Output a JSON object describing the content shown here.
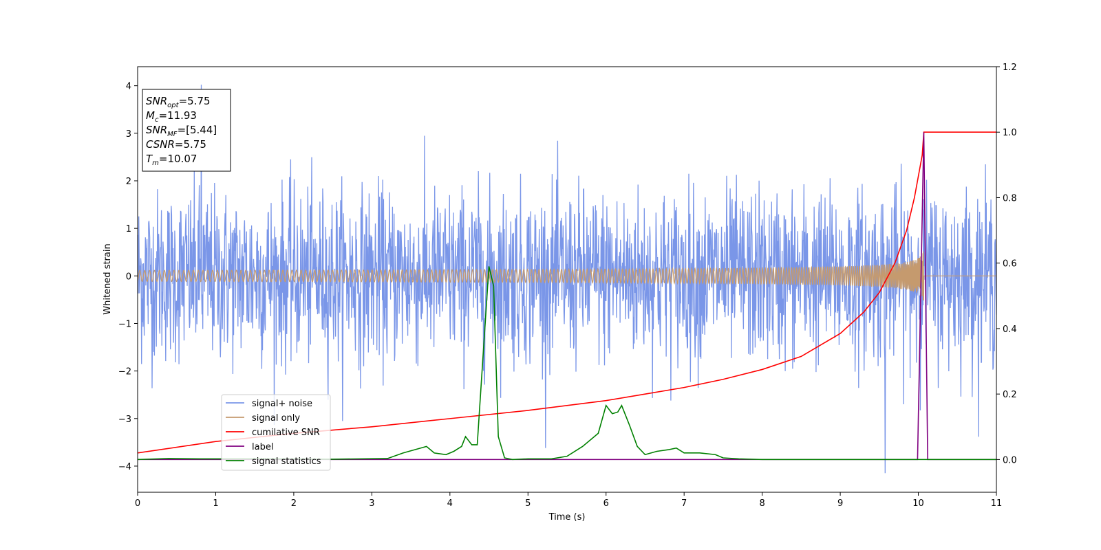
{
  "chart_data": {
    "type": "line",
    "xlabel": "Time (s)",
    "ylabel": "Whitened strain",
    "xlim": [
      0,
      11
    ],
    "ylim": [
      -4.55,
      4.4
    ],
    "y2lim": [
      -0.1,
      1.2
    ],
    "x_ticks": [
      0,
      1,
      2,
      3,
      4,
      5,
      6,
      7,
      8,
      9,
      10,
      11
    ],
    "y_ticks": [
      -4,
      -3,
      -2,
      -1,
      0,
      1,
      2,
      3,
      4
    ],
    "y2_ticks": [
      "0.0",
      "0.2",
      "0.4",
      "0.6",
      "0.8",
      "1.0",
      "1.2"
    ],
    "grid": false,
    "legend_placement": "lower-left",
    "annotation": {
      "lines": [
        {
          "base": "SNR",
          "sub": "opt",
          "value": "=5.75"
        },
        {
          "base": "M",
          "sub": "c",
          "value": "=11.93"
        },
        {
          "base": "SNR",
          "sub": "MF",
          "value": "=[5.44]"
        },
        {
          "base": "CSNR",
          "sub": "",
          "value": "=5.75"
        },
        {
          "base": "T",
          "sub": "m",
          "value": "=10.07"
        }
      ]
    },
    "series": [
      {
        "name": "signal+ noise",
        "color": "#7a96e8",
        "axis": "left",
        "kind": "noise",
        "sigma": 0.9,
        "peak_max": 4.02,
        "peak_min": -4.15,
        "samples": 2200
      },
      {
        "name": "signal only",
        "color": "#c59a6e",
        "axis": "left",
        "kind": "chirp",
        "merger_t": 10.07,
        "peak_amp": 0.55
      },
      {
        "name": "cumilative SNR",
        "color": "#ff0000",
        "axis": "right",
        "x": [
          0,
          1,
          2,
          3,
          4,
          5,
          5.5,
          6,
          6.5,
          7,
          7.5,
          8,
          8.5,
          9,
          9.3,
          9.5,
          9.7,
          9.85,
          9.95,
          10.05,
          10.07,
          10.08,
          11
        ],
        "y": [
          0.02,
          0.055,
          0.08,
          0.1,
          0.125,
          0.15,
          0.165,
          0.18,
          0.2,
          0.22,
          0.245,
          0.275,
          0.315,
          0.385,
          0.45,
          0.51,
          0.6,
          0.7,
          0.8,
          0.93,
          1.0,
          1.0,
          1.0
        ]
      },
      {
        "name": "label",
        "color": "#800080",
        "axis": "right",
        "x": [
          0,
          9.99,
          10.07,
          10.12,
          11
        ],
        "y": [
          0,
          0,
          1.0,
          0,
          0
        ]
      },
      {
        "name": "signal statistics",
        "color": "#008000",
        "axis": "right",
        "x": [
          0,
          0.4,
          0.8,
          1.5,
          2.5,
          3.2,
          3.4,
          3.55,
          3.7,
          3.8,
          3.95,
          4.05,
          4.15,
          4.2,
          4.28,
          4.35,
          4.42,
          4.5,
          4.56,
          4.62,
          4.7,
          4.8,
          5.0,
          5.3,
          5.5,
          5.7,
          5.9,
          6.0,
          6.08,
          6.15,
          6.2,
          6.3,
          6.4,
          6.5,
          6.65,
          6.8,
          6.9,
          7.0,
          7.2,
          7.4,
          7.5,
          7.7,
          8.0,
          11
        ],
        "y": [
          0,
          0.003,
          0.002,
          0.002,
          0.001,
          0.003,
          0.02,
          0.03,
          0.04,
          0.02,
          0.015,
          0.025,
          0.04,
          0.07,
          0.045,
          0.045,
          0.3,
          0.59,
          0.53,
          0.07,
          0.005,
          0,
          0.002,
          0.002,
          0.01,
          0.04,
          0.08,
          0.165,
          0.14,
          0.145,
          0.165,
          0.105,
          0.04,
          0.015,
          0.025,
          0.03,
          0.035,
          0.02,
          0.02,
          0.015,
          0.005,
          0.002,
          0,
          0
        ]
      }
    ]
  }
}
